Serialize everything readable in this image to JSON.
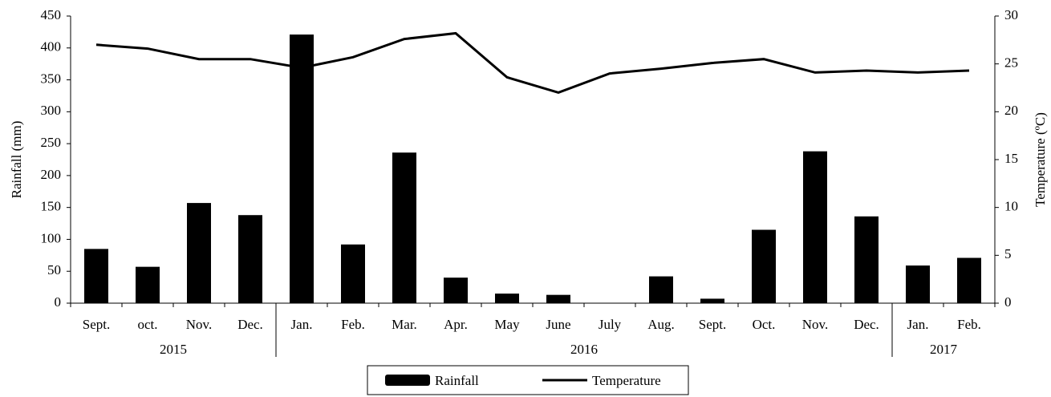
{
  "chart_data": {
    "type": "bar",
    "categories": [
      "Sept.",
      "oct.",
      "Nov.",
      "Dec.",
      "Jan.",
      "Feb.",
      "Mar.",
      "Apr.",
      "May",
      "June",
      "July",
      "Aug.",
      "Sept.",
      "Oct.",
      "Nov.",
      "Dec.",
      "Jan.",
      "Feb."
    ],
    "group_labels": [
      "2015",
      "2016",
      "2017"
    ],
    "group_sizes": [
      4,
      12,
      2
    ],
    "series": [
      {
        "name": "Rainfall",
        "type": "bar",
        "color": "#000000",
        "values": [
          85,
          57,
          157,
          138,
          421,
          92,
          236,
          40,
          15,
          13,
          0,
          42,
          7,
          115,
          238,
          136,
          59,
          71
        ]
      },
      {
        "name": "Temperature",
        "type": "line",
        "axis": "y2",
        "color": "#000000",
        "values": [
          27.0,
          26.6,
          25.5,
          25.5,
          24.6,
          25.7,
          27.6,
          28.2,
          23.6,
          22.0,
          24.0,
          24.5,
          25.1,
          25.5,
          24.1,
          24.3,
          24.1,
          24.3
        ]
      }
    ],
    "ylabel": "Rainfall (mm)",
    "y2label": "Temperature (ºC)",
    "ylim": [
      0,
      450
    ],
    "yticks": [
      0,
      50,
      100,
      150,
      200,
      250,
      300,
      350,
      400,
      450
    ],
    "y2lim": [
      0,
      30
    ],
    "y2ticks": [
      0,
      5,
      10,
      15,
      20,
      25,
      30
    ],
    "legend": "bottom"
  }
}
